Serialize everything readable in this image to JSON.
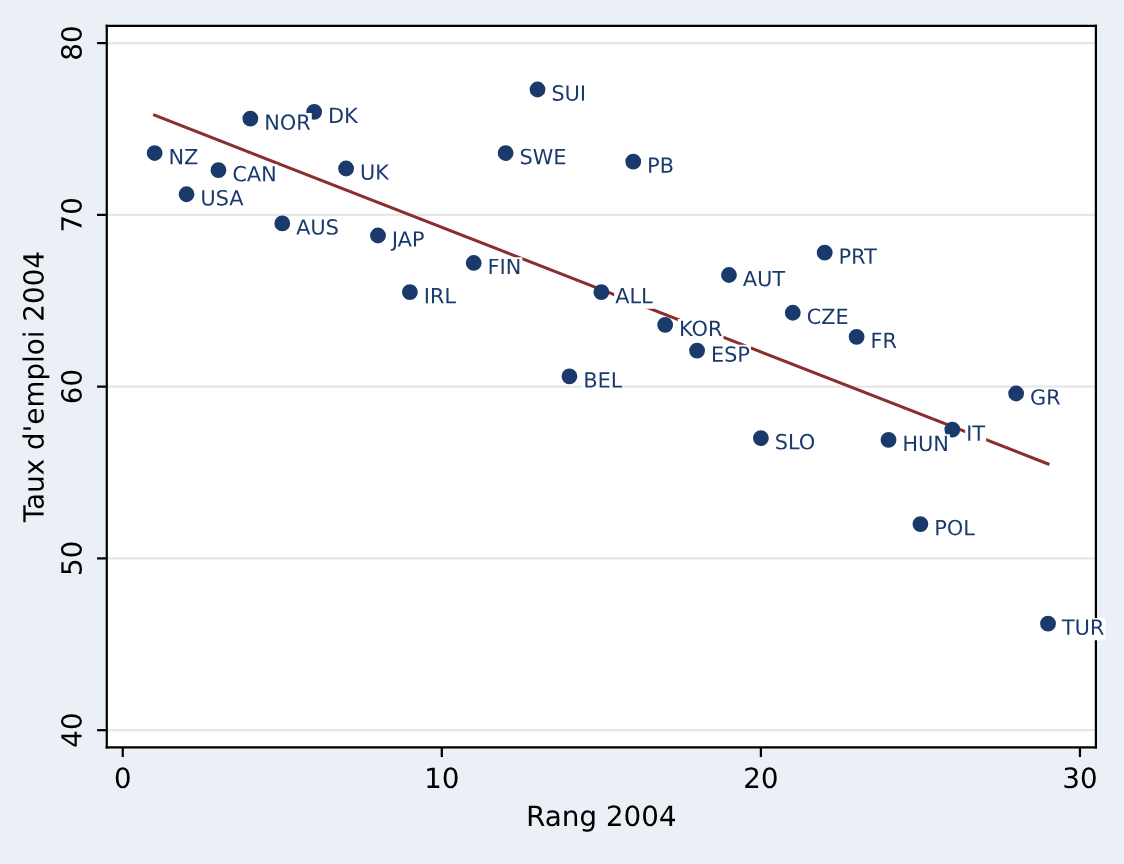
{
  "chart_data": {
    "type": "scatter",
    "xlabel": "Rang 2004",
    "ylabel": "Taux d'emploi 2004",
    "xlim": [
      -0.5,
      30.5
    ],
    "ylim": [
      39,
      81
    ],
    "xticks": [
      0,
      10,
      20,
      30
    ],
    "yticks": [
      40,
      50,
      60,
      70,
      80
    ],
    "grid": "y",
    "series": [
      {
        "marker": "circle",
        "color": "#1a3a6b",
        "x": [
          1,
          2,
          3,
          4,
          5,
          6,
          7,
          8,
          9,
          11,
          12,
          13,
          14,
          15,
          16,
          17,
          18,
          19,
          20,
          21,
          22,
          23,
          24,
          25,
          26,
          28,
          29
        ],
        "values": [
          73.6,
          71.2,
          72.6,
          75.6,
          69.5,
          76.0,
          72.7,
          68.8,
          65.5,
          67.2,
          73.6,
          77.3,
          60.6,
          65.5,
          73.1,
          63.6,
          62.1,
          66.5,
          57.0,
          64.3,
          67.8,
          62.9,
          56.9,
          52.0,
          57.5,
          59.6,
          46.2
        ]
      },
      {
        "type": "line",
        "color": "#8b2e2e",
        "x": [
          1,
          29
        ],
        "values": [
          75.8,
          55.5
        ]
      }
    ],
    "annotations": [
      {
        "text": "NZ",
        "x": 1,
        "y": 73.6
      },
      {
        "text": "USA",
        "x": 2,
        "y": 71.2
      },
      {
        "text": "CAN",
        "x": 3,
        "y": 72.6
      },
      {
        "text": "NOR",
        "x": 4,
        "y": 75.6
      },
      {
        "text": "AUS",
        "x": 5,
        "y": 69.5
      },
      {
        "text": "DK",
        "x": 6,
        "y": 76.0
      },
      {
        "text": "UK",
        "x": 7,
        "y": 72.7
      },
      {
        "text": "JAP",
        "x": 8,
        "y": 68.8
      },
      {
        "text": "IRL",
        "x": 9,
        "y": 65.5
      },
      {
        "text": "FIN",
        "x": 11,
        "y": 67.2
      },
      {
        "text": "SWE",
        "x": 12,
        "y": 73.6
      },
      {
        "text": "SUI",
        "x": 13,
        "y": 77.3
      },
      {
        "text": "BEL",
        "x": 14,
        "y": 60.6
      },
      {
        "text": "ALL",
        "x": 15,
        "y": 65.5
      },
      {
        "text": "PB",
        "x": 16,
        "y": 73.1
      },
      {
        "text": "KOR",
        "x": 17,
        "y": 63.6
      },
      {
        "text": "ESP",
        "x": 18,
        "y": 62.1
      },
      {
        "text": "AUT",
        "x": 19,
        "y": 66.5
      },
      {
        "text": "SLO",
        "x": 20,
        "y": 57.0
      },
      {
        "text": "CZE",
        "x": 21,
        "y": 64.3
      },
      {
        "text": "PRT",
        "x": 22,
        "y": 67.8
      },
      {
        "text": "FR",
        "x": 23,
        "y": 62.9
      },
      {
        "text": "HUN",
        "x": 24,
        "y": 56.9
      },
      {
        "text": "POL",
        "x": 25,
        "y": 52.0
      },
      {
        "text": "IT",
        "x": 26,
        "y": 57.5
      },
      {
        "text": "GR",
        "x": 28,
        "y": 59.6
      },
      {
        "text": "TUR",
        "x": 29,
        "y": 46.2
      }
    ]
  }
}
